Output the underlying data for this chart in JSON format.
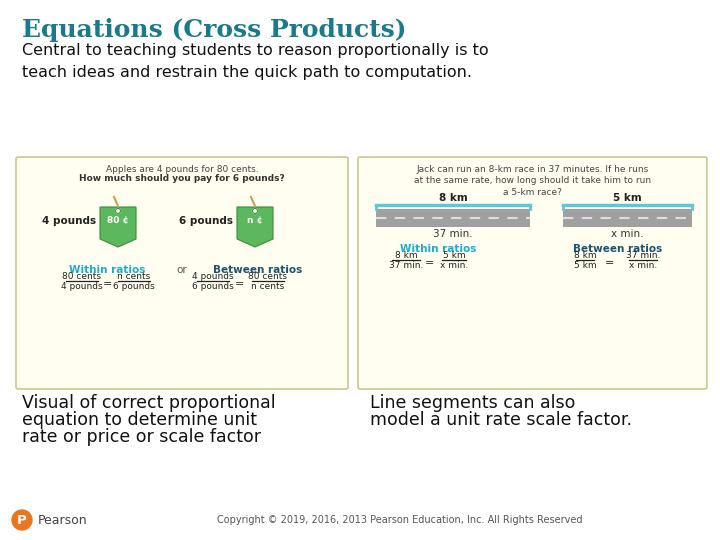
{
  "title": "Equations (Cross Products)",
  "title_color": "#1a7a8a",
  "title_fontsize": 18,
  "subtitle": "Central to teaching students to reason proportionally is to\nteach ideas and restrain the quick path to computation.",
  "subtitle_fontsize": 11.5,
  "bg_color": "#ffffff",
  "left_box_bg": "#fffef0",
  "right_box_bg": "#fffef0",
  "box_border_color": "#c8c890",
  "left_box_title1": "Apples are 4 pounds for 80 cents.",
  "left_box_title2": "How much should you pay for 6 pounds?",
  "left_label1": "4 pounds",
  "left_label2": "6 pounds",
  "left_tag1": "80 ¢",
  "left_tag2": "n ¢",
  "within_ratios_color": "#1aadce",
  "between_ratios_color": "#1a5276",
  "left_within": "Within ratios",
  "left_or": "or",
  "left_between": "Between ratios",
  "left_eq1_num": "80 cents",
  "left_eq1_den": "4 pounds",
  "left_eq1_eq": "=",
  "left_eq1_rnum": "n cents",
  "left_eq1_rden": "6 pounds",
  "left_eq2_num": "4 pounds",
  "left_eq2_den": "6 pounds",
  "left_eq2_eq": "=",
  "left_eq2_rnum": "80 cents",
  "left_eq2_rden": "n cents",
  "right_box_title": "Jack can run an 8-km race in 37 minutes. If he runs\nat the same rate, how long should it take him to run\na 5-km race?",
  "right_8km": "8 km",
  "right_5km": "5 km",
  "right_37min": "37 min.",
  "right_xmin": "x min.",
  "right_within": "Within ratios",
  "right_between": "Between ratios",
  "right_eq1_num": "8 km",
  "right_eq1_den": "37 min.",
  "right_eq1_eq": "=",
  "right_eq1_rnum": "5 km",
  "right_eq1_rden": "x min.",
  "right_eq2_num": "8 km",
  "right_eq2_den": "5 km",
  "right_eq2_eq": "=",
  "right_eq2_rnum": "37 min.",
  "right_eq2_rden": "x min.",
  "bottom_left1": "Visual of correct proportional",
  "bottom_left2": "equation to determine unit",
  "bottom_left3": "rate or price or scale factor",
  "bottom_right1": "Line segments can also",
  "bottom_right2": "model a unit rate scale factor.",
  "copyright": "Copyright © 2019, 2016, 2013 Pearson Education, Inc. All Rights Reserved",
  "pearson_color": "#e87722",
  "road_color": "#a0a0a0",
  "road_dark_color": "#888888",
  "road_line_color": "#dddddd",
  "bar_blue_color": "#5bc8d8",
  "tag_green": "#5cb85c",
  "tag_dark_green": "#3d8b3d",
  "tag_string_color": "#c8a050"
}
